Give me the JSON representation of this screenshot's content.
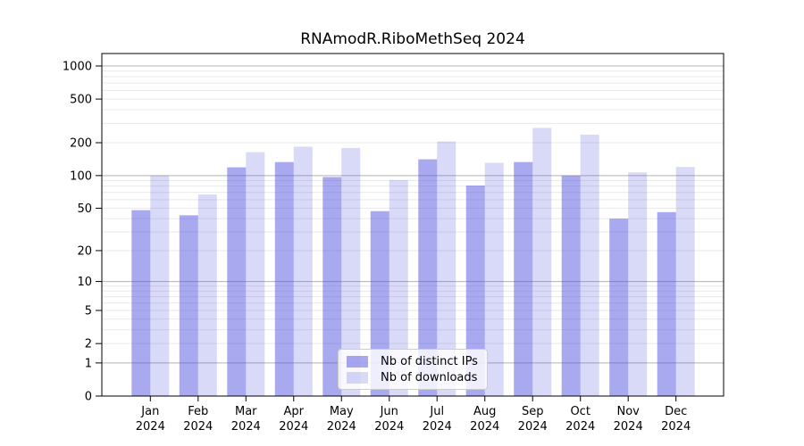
{
  "chart_data": {
    "type": "bar",
    "title": "RNAmodR.RiboMethSeq 2024",
    "x_year": "2024",
    "categories": [
      "Jan",
      "Feb",
      "Mar",
      "Apr",
      "May",
      "Jun",
      "Jul",
      "Aug",
      "Sep",
      "Oct",
      "Nov",
      "Dec"
    ],
    "series": [
      {
        "name": "Nb of distinct IPs",
        "color": "#a9a9ee",
        "alpha": 0.49,
        "values": [
          48,
          43,
          119,
          133,
          97,
          47,
          141,
          81,
          133,
          100,
          40,
          46
        ]
      },
      {
        "name": "Nb of downloads",
        "color": "#d9d9f7",
        "alpha": 0.22,
        "values": [
          100,
          67,
          164,
          184,
          179,
          91,
          205,
          131,
          273,
          237,
          107,
          120
        ]
      }
    ],
    "bar_base_color": "#5050e0",
    "yscale": "log1p",
    "yticks": [
      0,
      1,
      2,
      5,
      10,
      20,
      50,
      100,
      200,
      500,
      1000
    ],
    "major_grid_values": [
      1,
      10,
      100,
      1000
    ],
    "ylim": [
      0,
      1300
    ],
    "grid": true,
    "legend_position": "lower center",
    "gridline_minor_color": "#e9e9e9",
    "gridline_major_color": "#b3b3b3"
  }
}
